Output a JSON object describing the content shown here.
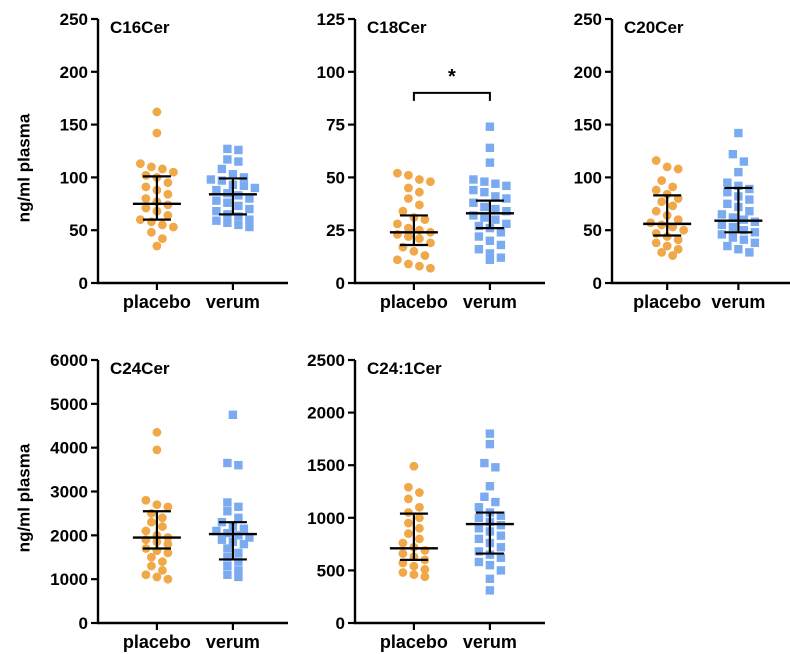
{
  "colors": {
    "placebo": "#f0a848",
    "verum": "#7aaaf0",
    "axis": "#000000",
    "errorbar": "#000000"
  },
  "shared_ylabel": "ng/ml plasma",
  "chart_data": [
    {
      "type": "scatter",
      "title": "C16Cer",
      "xlabel": "",
      "ylabel": "ng/ml plasma",
      "categories": [
        "placebo",
        "verum"
      ],
      "ylim": [
        0,
        250
      ],
      "yticks": [
        0,
        50,
        100,
        150,
        200,
        250
      ],
      "grid": false,
      "legend": "none",
      "series": [
        {
          "name": "placebo",
          "marker": "circle",
          "values": [
            162,
            142,
            113,
            110,
            108,
            105,
            102,
            100,
            95,
            91,
            88,
            84,
            80,
            77,
            74,
            71,
            68,
            64,
            60,
            58,
            55,
            53,
            48,
            42,
            35
          ],
          "summary": {
            "median": 75,
            "q1": 60,
            "q3": 101
          }
        },
        {
          "name": "verum",
          "marker": "square",
          "values": [
            127,
            126,
            117,
            115,
            108,
            103,
            100,
            98,
            97,
            93,
            92,
            90,
            88,
            85,
            83,
            80,
            78,
            76,
            73,
            70,
            68,
            65,
            63,
            60,
            59,
            57,
            55,
            53
          ],
          "summary": {
            "median": 84,
            "q1": 65,
            "q3": 99
          }
        }
      ]
    },
    {
      "type": "scatter",
      "title": "C18Cer",
      "xlabel": "",
      "ylabel": "",
      "categories": [
        "placebo",
        "verum"
      ],
      "ylim": [
        0,
        125
      ],
      "yticks": [
        0,
        25,
        50,
        75,
        100,
        125
      ],
      "grid": false,
      "legend": "none",
      "significance": {
        "label": "*",
        "between": [
          "placebo",
          "verum"
        ],
        "y": 90
      },
      "series": [
        {
          "name": "placebo",
          "marker": "circle",
          "values": [
            52,
            51,
            49,
            48,
            45,
            43,
            40,
            37,
            34,
            31,
            30,
            28,
            26,
            25,
            24,
            23,
            22,
            21,
            19,
            17,
            15,
            13,
            11,
            9,
            8,
            7
          ],
          "summary": {
            "median": 24,
            "q1": 18,
            "q3": 32
          }
        },
        {
          "name": "verum",
          "marker": "square",
          "values": [
            74,
            64,
            57,
            49,
            48,
            47,
            46,
            44,
            43,
            41,
            40,
            38,
            36,
            35,
            34,
            32,
            31,
            30,
            28,
            27,
            26,
            24,
            22,
            20,
            18,
            16,
            14,
            12,
            11
          ],
          "summary": {
            "median": 33,
            "q1": 26,
            "q3": 39
          }
        }
      ]
    },
    {
      "type": "scatter",
      "title": "C20Cer",
      "xlabel": "",
      "ylabel": "",
      "categories": [
        "placebo",
        "verum"
      ],
      "ylim": [
        0,
        250
      ],
      "yticks": [
        0,
        50,
        100,
        150,
        200,
        250
      ],
      "grid": false,
      "legend": "none",
      "series": [
        {
          "name": "placebo",
          "marker": "circle",
          "values": [
            116,
            110,
            108,
            97,
            91,
            88,
            84,
            80,
            77,
            73,
            68,
            64,
            60,
            57,
            55,
            53,
            50,
            47,
            44,
            41,
            38,
            35,
            32,
            29,
            26
          ],
          "summary": {
            "median": 56,
            "q1": 45,
            "q3": 83
          }
        },
        {
          "name": "verum",
          "marker": "square",
          "values": [
            142,
            122,
            115,
            105,
            95,
            92,
            89,
            86,
            82,
            79,
            75,
            72,
            68,
            65,
            62,
            60,
            58,
            55,
            53,
            50,
            48,
            46,
            43,
            41,
            38,
            35,
            32,
            29
          ],
          "summary": {
            "median": 59,
            "q1": 48,
            "q3": 90
          }
        }
      ]
    },
    {
      "type": "scatter",
      "title": "C24Cer",
      "xlabel": "",
      "ylabel": "ng/ml plasma",
      "categories": [
        "placebo",
        "verum"
      ],
      "ylim": [
        0,
        6000
      ],
      "yticks": [
        0,
        1000,
        2000,
        3000,
        4000,
        5000,
        6000
      ],
      "grid": false,
      "legend": "none",
      "series": [
        {
          "name": "placebo",
          "marker": "circle",
          "values": [
            4350,
            3950,
            2800,
            2700,
            2650,
            2500,
            2400,
            2300,
            2200,
            2100,
            2000,
            1950,
            1900,
            1850,
            1800,
            1700,
            1650,
            1600,
            1500,
            1400,
            1300,
            1200,
            1100,
            1050,
            1000
          ],
          "summary": {
            "median": 1950,
            "q1": 1700,
            "q3": 2550
          }
        },
        {
          "name": "verum",
          "marker": "square",
          "values": [
            4750,
            3650,
            3600,
            2750,
            2650,
            2550,
            2400,
            2300,
            2200,
            2150,
            2100,
            2050,
            2000,
            1950,
            1900,
            1850,
            1800,
            1700,
            1600,
            1500,
            1400,
            1300,
            1200,
            1100,
            1050
          ],
          "summary": {
            "median": 2030,
            "q1": 1450,
            "q3": 2300
          }
        }
      ]
    },
    {
      "type": "scatter",
      "title": "C24:1Cer",
      "xlabel": "",
      "ylabel": "",
      "categories": [
        "placebo",
        "verum"
      ],
      "ylim": [
        0,
        2500
      ],
      "yticks": [
        0,
        500,
        1000,
        1500,
        2000,
        2500
      ],
      "grid": false,
      "legend": "none",
      "series": [
        {
          "name": "placebo",
          "marker": "circle",
          "values": [
            1490,
            1290,
            1240,
            1180,
            1100,
            1050,
            1000,
            950,
            900,
            850,
            800,
            760,
            720,
            690,
            660,
            630,
            600,
            570,
            540,
            510,
            480,
            460,
            440
          ],
          "summary": {
            "median": 710,
            "q1": 600,
            "q3": 1040
          }
        },
        {
          "name": "verum",
          "marker": "square",
          "values": [
            1800,
            1700,
            1520,
            1480,
            1300,
            1200,
            1150,
            1100,
            1050,
            1020,
            1000,
            960,
            930,
            900,
            870,
            830,
            800,
            760,
            720,
            680,
            650,
            620,
            580,
            550,
            500,
            420,
            310
          ],
          "summary": {
            "median": 940,
            "q1": 660,
            "q3": 1050
          }
        }
      ]
    }
  ]
}
